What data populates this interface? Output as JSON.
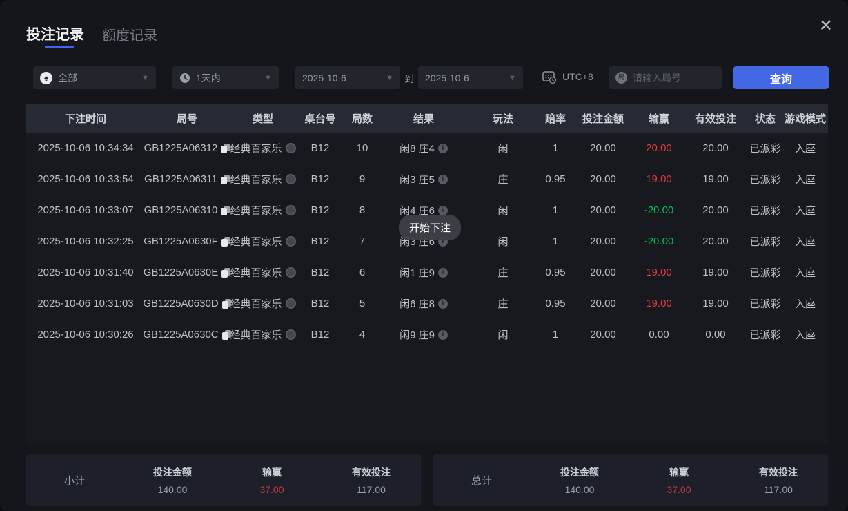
{
  "window": {
    "close_glyph": "✕"
  },
  "tabs": [
    {
      "label": "投注记录",
      "active": true
    },
    {
      "label": "额度记录",
      "active": false
    }
  ],
  "filters": {
    "game_type": {
      "value": "全部",
      "icon": "spade",
      "spade_glyph": "♠"
    },
    "time_range": {
      "value": "1天内",
      "icon": "clock"
    },
    "date_from": "2025-10-6",
    "to_label": "到",
    "date_to": "2025-10-6",
    "timezone": "UTC+8",
    "search_icon_char": "局",
    "search_placeholder": "请输入局号",
    "query_button": "查询"
  },
  "table": {
    "columns": [
      "下注时间",
      "局号",
      "类型",
      "桌台号",
      "局数",
      "结果",
      "玩法",
      "赔率",
      "投注金额",
      "输赢",
      "有效投注",
      "状态",
      "游戏模式"
    ],
    "rows": [
      {
        "time": "2025-10-06 10:34:34",
        "game_id": "GB1225A06312",
        "type": "经典百家乐",
        "table_no": "B12",
        "rounds": "10",
        "result": "闲8 庄4",
        "play": "闲",
        "odds": "1",
        "bet": "20.00",
        "win": "20.00",
        "win_color": "red",
        "valid": "20.00",
        "status": "已派彩",
        "mode": "入座"
      },
      {
        "time": "2025-10-06 10:33:54",
        "game_id": "GB1225A06311",
        "type": "经典百家乐",
        "table_no": "B12",
        "rounds": "9",
        "result": "闲3 庄5",
        "play": "庄",
        "odds": "0.95",
        "bet": "20.00",
        "win": "19.00",
        "win_color": "red",
        "valid": "19.00",
        "status": "已派彩",
        "mode": "入座"
      },
      {
        "time": "2025-10-06 10:33:07",
        "game_id": "GB1225A06310",
        "type": "经典百家乐",
        "table_no": "B12",
        "rounds": "8",
        "result": "闲4 庄6",
        "play": "闲",
        "odds": "1",
        "bet": "20.00",
        "win": "-20.00",
        "win_color": "green",
        "valid": "20.00",
        "status": "已派彩",
        "mode": "入座"
      },
      {
        "time": "2025-10-06 10:32:25",
        "game_id": "GB1225A0630F",
        "type": "经典百家乐",
        "table_no": "B12",
        "rounds": "7",
        "result": "闲3 庄6",
        "play": "闲",
        "odds": "1",
        "bet": "20.00",
        "win": "-20.00",
        "win_color": "green",
        "valid": "20.00",
        "status": "已派彩",
        "mode": "入座"
      },
      {
        "time": "2025-10-06 10:31:40",
        "game_id": "GB1225A0630E",
        "type": "经典百家乐",
        "table_no": "B12",
        "rounds": "6",
        "result": "闲1 庄9",
        "play": "庄",
        "odds": "0.95",
        "bet": "20.00",
        "win": "19.00",
        "win_color": "red",
        "valid": "19.00",
        "status": "已派彩",
        "mode": "入座"
      },
      {
        "time": "2025-10-06 10:31:03",
        "game_id": "GB1225A0630D",
        "type": "经典百家乐",
        "table_no": "B12",
        "rounds": "5",
        "result": "闲6 庄8",
        "play": "庄",
        "odds": "0.95",
        "bet": "20.00",
        "win": "19.00",
        "win_color": "red",
        "valid": "19.00",
        "status": "已派彩",
        "mode": "入座"
      },
      {
        "time": "2025-10-06 10:30:26",
        "game_id": "GB1225A0630C",
        "type": "经典百家乐",
        "table_no": "B12",
        "rounds": "4",
        "result": "闲9 庄9",
        "play": "闲",
        "odds": "1",
        "bet": "20.00",
        "win": "0.00",
        "win_color": "neutral",
        "valid": "0.00",
        "status": "已派彩",
        "mode": "入座"
      }
    ]
  },
  "toast": "开始下注",
  "summary": {
    "subtotal": {
      "label": "小计",
      "items": [
        {
          "label": "投注金额",
          "value": "140.00"
        },
        {
          "label": "输赢",
          "value": "37.00",
          "color": "red"
        },
        {
          "label": "有效投注",
          "value": "117.00"
        }
      ]
    },
    "total": {
      "label": "总计",
      "items": [
        {
          "label": "投注金额",
          "value": "140.00"
        },
        {
          "label": "输赢",
          "value": "37.00",
          "color": "red"
        },
        {
          "label": "有效投注",
          "value": "117.00"
        }
      ]
    }
  },
  "colors": {
    "accent_blue": "#4467e3",
    "tab_underline": "#3f64ee",
    "win_positive_red": "#e23b40",
    "win_negative_green": "#00c158",
    "summary_red": "#c23a3e",
    "page_bg": "#15161b",
    "header_row_bg": "#262a33",
    "panel_bg": "#1d2028"
  }
}
